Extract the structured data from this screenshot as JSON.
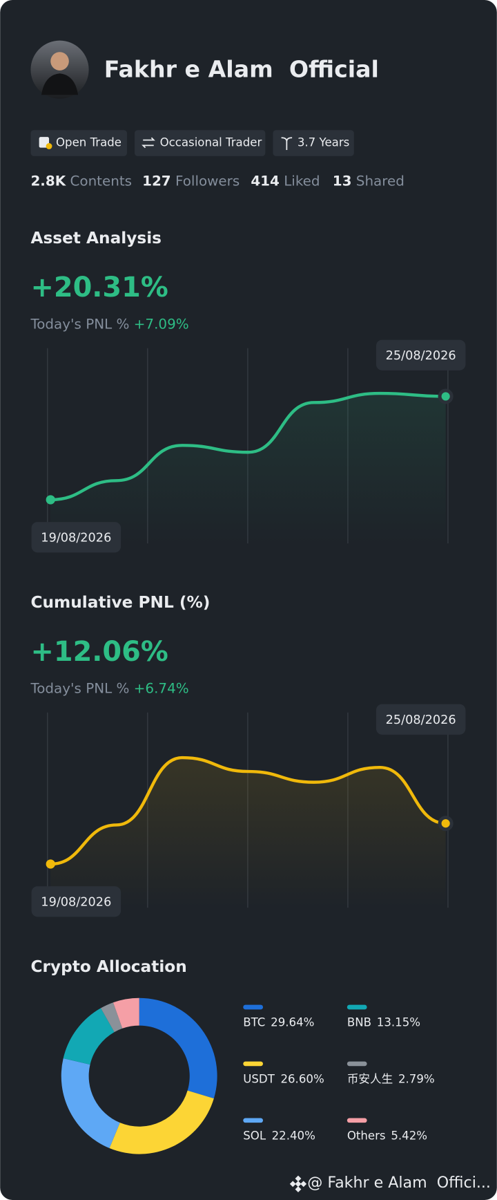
{
  "profile": {
    "name": "Fakhr e Alam  Official",
    "tags": [
      "Open Trade",
      "Occasional Trader",
      "3.7 Years"
    ],
    "stats": [
      {
        "value": "2.8K",
        "label": "Contents"
      },
      {
        "value": "127",
        "label": "Followers"
      },
      {
        "value": "414",
        "label": "Liked"
      },
      {
        "value": "13",
        "label": "Shared"
      }
    ]
  },
  "chart_data": [
    {
      "type": "line",
      "title": "Asset Analysis",
      "headline": "+20.31%",
      "subtitle_label": "Today's PNL %",
      "subtitle_value": "+7.09%",
      "categories": [
        "19/08/2026",
        null,
        null,
        null,
        null,
        null,
        "25/08/2026"
      ],
      "values": [
        0,
        3.76,
        10.68,
        9.33,
        19.1,
        20.9,
        20.31
      ],
      "color": "#2ebd85"
    },
    {
      "type": "line",
      "title": "Cumulative PNL (%)",
      "headline": "+12.06%",
      "subtitle_label": "Today's PNL %",
      "subtitle_value": "+6.74%",
      "categories": [
        "19/08/2026",
        null,
        null,
        null,
        null,
        null,
        "25/08/2026"
      ],
      "values": [
        0,
        11.6,
        31.6,
        27.5,
        24.3,
        28.7,
        12.06
      ],
      "color": "#f0b90b"
    },
    {
      "type": "pie",
      "title": "Crypto Allocation",
      "categories": [
        "BTC",
        "USDT",
        "SOL",
        "BNB",
        "币安人生",
        "Others"
      ],
      "values": [
        29.64,
        26.6,
        22.4,
        13.15,
        2.79,
        5.42
      ],
      "value_labels": [
        "29.64%",
        "26.60%",
        "22.40%",
        "13.15%",
        "2.79%",
        "5.42%"
      ],
      "colors": [
        "#1e6fd9",
        "#fcd535",
        "#5ea8f5",
        "#12a8b4",
        "#8a9199",
        "#f59fa6"
      ]
    }
  ],
  "footer": "@ Fakhr e Alam  Offici..."
}
